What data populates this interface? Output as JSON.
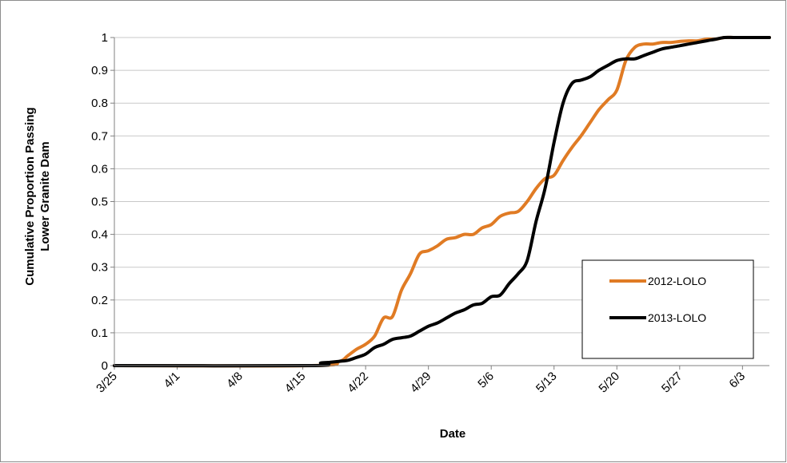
{
  "chart_data": {
    "type": "line",
    "xlabel": "Date",
    "ylabel_lines": [
      "Cumulative Proportion Passing",
      "Lower Granite Dam"
    ],
    "x_tick_labels": [
      "3/25",
      "4/1",
      "4/8",
      "4/15",
      "4/22",
      "4/29",
      "5/6",
      "5/13",
      "5/20",
      "5/27",
      "6/3"
    ],
    "x_range_days": [
      0,
      73
    ],
    "ylim": [
      0,
      1
    ],
    "y_ticks": [
      0,
      0.1,
      0.2,
      0.3,
      0.4,
      0.5,
      0.6,
      0.7,
      0.8,
      0.9,
      1
    ],
    "y_tick_labels": [
      "0",
      "0.1",
      "0.2",
      "0.3",
      "0.4",
      "0.5",
      "0.6",
      "0.7",
      "0.8",
      "0.9",
      "1"
    ],
    "grid": "horizontal",
    "legend_position": "right",
    "series": [
      {
        "name": "2012-LOLO",
        "color": "#e07b24",
        "x": [
          0,
          22,
          25,
          26,
          27,
          28,
          29,
          30,
          31,
          32,
          33,
          34,
          35,
          36,
          37,
          38,
          39,
          40,
          41,
          42,
          43,
          44,
          45,
          46,
          47,
          48,
          49,
          50,
          51,
          52,
          53,
          54,
          55,
          56,
          57,
          58,
          59,
          60,
          61,
          62,
          63,
          64,
          65,
          66,
          67,
          68,
          69,
          70,
          71,
          72,
          73
        ],
        "y": [
          0,
          0,
          0.012,
          0.03,
          0.05,
          0.065,
          0.09,
          0.145,
          0.15,
          0.23,
          0.28,
          0.34,
          0.35,
          0.365,
          0.385,
          0.39,
          0.4,
          0.4,
          0.42,
          0.43,
          0.455,
          0.465,
          0.47,
          0.5,
          0.54,
          0.57,
          0.58,
          0.625,
          0.665,
          0.7,
          0.74,
          0.78,
          0.81,
          0.84,
          0.93,
          0.97,
          0.98,
          0.98,
          0.985,
          0.985,
          0.988,
          0.99,
          0.99,
          0.995,
          0.995,
          1,
          1,
          1,
          1,
          1,
          1
        ]
      },
      {
        "name": "2013-LOLO",
        "color": "#000000",
        "x": [
          0,
          22,
          23,
          24,
          25,
          26,
          27,
          28,
          29,
          30,
          31,
          32,
          33,
          34,
          35,
          36,
          37,
          38,
          39,
          40,
          41,
          42,
          43,
          44,
          45,
          46,
          47,
          48,
          49,
          50,
          51,
          52,
          53,
          54,
          55,
          56,
          57,
          58,
          59,
          60,
          61,
          62,
          63,
          64,
          65,
          66,
          67,
          68,
          69,
          70,
          71,
          72,
          73
        ],
        "y": [
          0,
          0,
          0.008,
          0.01,
          0.013,
          0.016,
          0.025,
          0.035,
          0.055,
          0.065,
          0.08,
          0.085,
          0.09,
          0.105,
          0.12,
          0.13,
          0.145,
          0.16,
          0.17,
          0.185,
          0.19,
          0.21,
          0.215,
          0.25,
          0.28,
          0.32,
          0.44,
          0.54,
          0.68,
          0.8,
          0.86,
          0.87,
          0.88,
          0.9,
          0.915,
          0.93,
          0.935,
          0.935,
          0.945,
          0.955,
          0.965,
          0.97,
          0.975,
          0.98,
          0.985,
          0.99,
          0.995,
          1,
          1,
          1,
          1,
          1,
          1
        ]
      }
    ]
  }
}
